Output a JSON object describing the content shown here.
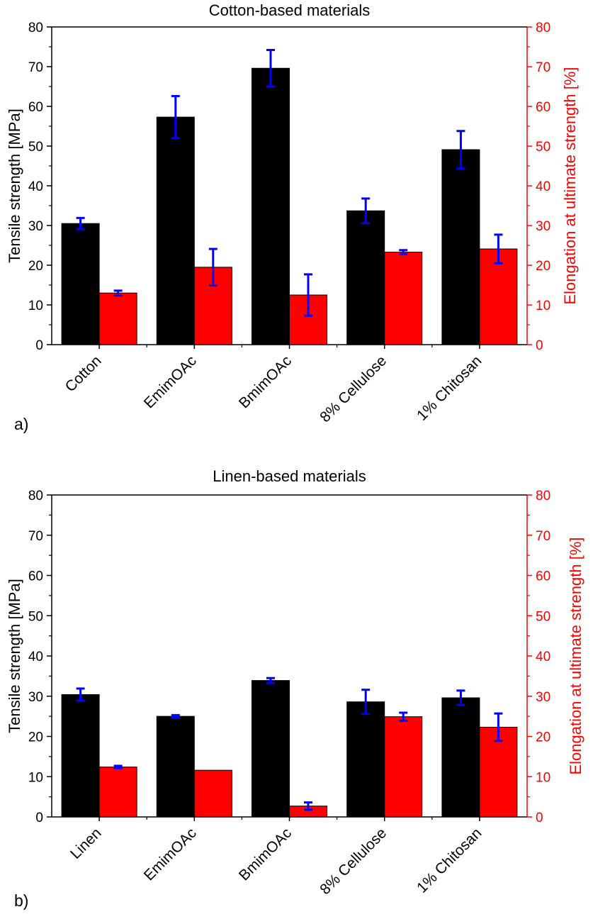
{
  "chart_data": [
    {
      "type": "bar",
      "panel_label": "a)",
      "title": "Cotton-based materials",
      "categories": [
        "Cotton",
        "EmimOAc",
        "BmimOAc",
        "8% Cellulose",
        "1% Chitosan"
      ],
      "ylabel": "Tensile strength [MPa]",
      "y2label": "Elongation at ultimate strength [%]",
      "ylim": [
        0,
        80
      ],
      "y2lim": [
        0,
        80
      ],
      "yticks": [
        0,
        10,
        20,
        30,
        40,
        50,
        60,
        70,
        80
      ],
      "grid": false,
      "series": [
        {
          "axis": "left",
          "color": "#000000",
          "values": [
            30.5,
            57.3,
            69.6,
            33.7,
            49.1
          ],
          "errors": [
            1.4,
            5.3,
            4.6,
            3.1,
            4.7
          ]
        },
        {
          "axis": "right",
          "color": "#ff0000",
          "values": [
            13.0,
            19.5,
            12.5,
            23.3,
            24.1
          ],
          "errors": [
            0.6,
            4.6,
            5.2,
            0.5,
            3.6
          ]
        }
      ],
      "error_bar_color": "#0000ff"
    },
    {
      "type": "bar",
      "panel_label": "b)",
      "title": "Linen-based materials",
      "categories": [
        "Linen",
        "EmimOAc",
        "BmimOAc",
        "8% Cellulose",
        "1% Chitosan"
      ],
      "ylabel": "Tensile strength [MPa]",
      "y2label": "Elongation at ultimate strength [%]",
      "ylim": [
        0,
        80
      ],
      "y2lim": [
        0,
        80
      ],
      "yticks": [
        0,
        10,
        20,
        30,
        40,
        50,
        60,
        70,
        80
      ],
      "grid": false,
      "series": [
        {
          "axis": "left",
          "color": "#000000",
          "values": [
            30.4,
            25.0,
            33.9,
            28.6,
            29.6
          ],
          "errors": [
            1.5,
            0.3,
            0.6,
            3.0,
            1.8
          ]
        },
        {
          "axis": "right",
          "color": "#ff0000",
          "values": [
            12.4,
            11.6,
            2.7,
            24.9,
            22.3
          ],
          "errors": [
            0.3,
            0,
            0.9,
            1.0,
            3.4
          ]
        }
      ],
      "error_bar_color": "#0000ff"
    }
  ]
}
